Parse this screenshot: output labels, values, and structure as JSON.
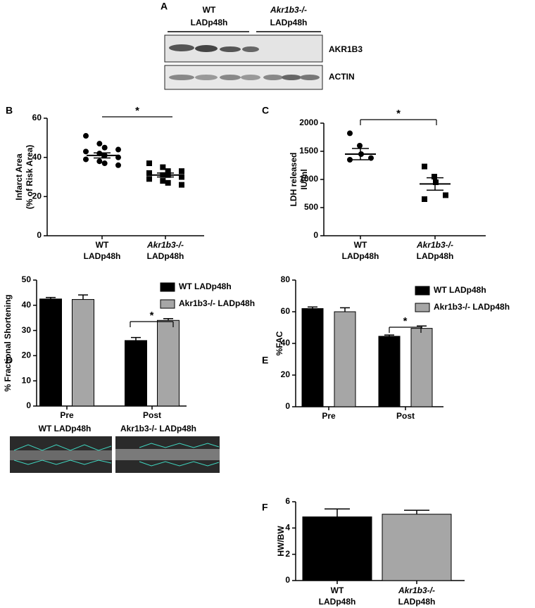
{
  "blot": {
    "panel": "A",
    "groups": [
      [
        "WT",
        "LADp48h"
      ],
      [
        "Akr1b3-/-",
        "LADp48h"
      ]
    ],
    "bands": [
      "AKR1B3",
      "ACTIN"
    ]
  },
  "echo": {
    "captions": [
      "WT LADp48h",
      "Akr1b3-/- LADp48h"
    ]
  },
  "chart_data": [
    {
      "type": "dotplot",
      "panel": "B",
      "ylabel": [
        "Infarct Area",
        "(% of Risk Area)"
      ],
      "categories": [
        [
          "WT",
          "LADp48h"
        ],
        [
          "Akr1b3-/-",
          "LADp48h"
        ]
      ],
      "groups": [
        {
          "marker": "circle",
          "points": [
            51,
            47,
            45,
            44,
            43,
            42,
            41,
            40,
            39,
            38,
            37,
            36
          ],
          "mean": 41,
          "sem": 1.3
        },
        {
          "marker": "square",
          "points": [
            37,
            35,
            33,
            33,
            32,
            31,
            31,
            30,
            29,
            28,
            27,
            26
          ],
          "mean": 31,
          "sem": 1
        }
      ],
      "ylim": [
        0,
        60
      ],
      "yticks": [
        0,
        20,
        40,
        60
      ],
      "significance": "*"
    },
    {
      "type": "dotplot",
      "panel": "C",
      "ylabel": [
        "LDH released",
        "IU/ml"
      ],
      "categories": [
        [
          "WT",
          "LADp48h"
        ],
        [
          "Akr1b3-/-",
          "LADp48h"
        ]
      ],
      "groups": [
        {
          "marker": "circle",
          "points": [
            1820,
            1600,
            1450,
            1380,
            1350
          ],
          "mean": 1450,
          "sem": 100
        },
        {
          "marker": "square",
          "points": [
            1230,
            1050,
            950,
            720,
            650
          ],
          "mean": 920,
          "sem": 110
        }
      ],
      "ylim": [
        0,
        2000
      ],
      "yticks": [
        0,
        500,
        1000,
        1500,
        2000
      ],
      "significance": "*"
    },
    {
      "type": "groupedbar",
      "panel": "D",
      "ylabel": [
        "% Fractional Shortening"
      ],
      "categories": [
        "Pre",
        "Post"
      ],
      "series": [
        {
          "name": "WT LADp48h",
          "color": "#000000",
          "values": [
            42.5,
            26
          ],
          "errors": [
            0.6,
            1.2
          ]
        },
        {
          "name": "Akr1b3-/- LADp48h",
          "color": "#a6a6a6",
          "values": [
            42.3,
            34
          ],
          "errors": [
            1.8,
            0.7
          ]
        }
      ],
      "ylim": [
        0,
        50
      ],
      "yticks": [
        0,
        10,
        20,
        30,
        40,
        50
      ],
      "significance": "*"
    },
    {
      "type": "groupedbar",
      "panel": "E",
      "ylabel": [
        "%FAC"
      ],
      "categories": [
        "Pre",
        "Post"
      ],
      "series": [
        {
          "name": "WT LADp48h",
          "color": "#000000",
          "values": [
            62,
            44.5
          ],
          "errors": [
            1,
            0.8
          ]
        },
        {
          "name": "Akr1b3-/- LADp48h",
          "color": "#a6a6a6",
          "values": [
            60,
            49.5
          ],
          "errors": [
            2.5,
            1.5
          ]
        }
      ],
      "ylim": [
        0,
        80
      ],
      "yticks": [
        0,
        20,
        40,
        60,
        80
      ],
      "significance": "*"
    },
    {
      "type": "bar",
      "panel": "F",
      "ylabel": [
        "HW/BW"
      ],
      "categories": [
        [
          "WT",
          "LADp48h"
        ],
        [
          "Akr1b3-/-",
          "LADp48h"
        ]
      ],
      "values": [
        4.85,
        5.05
      ],
      "errors": [
        0.6,
        0.3
      ],
      "colors": [
        "#000000",
        "#a6a6a6"
      ],
      "ylim": [
        0,
        6
      ],
      "yticks": [
        0,
        2,
        4,
        6
      ]
    }
  ]
}
